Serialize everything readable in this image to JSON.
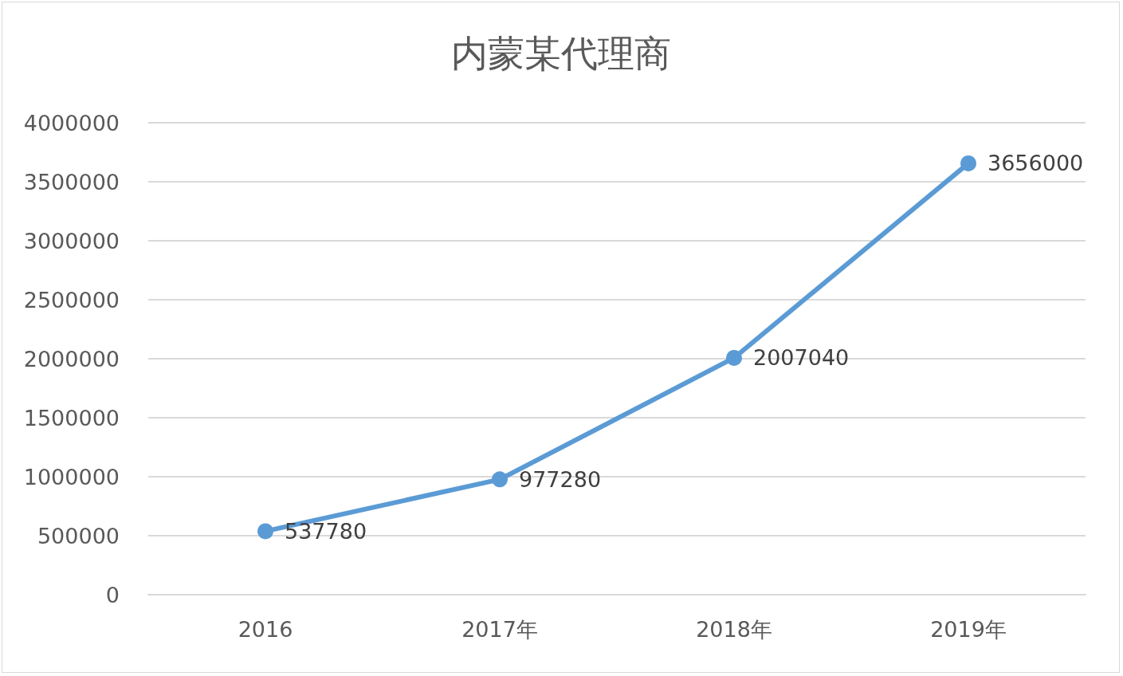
{
  "chart_data": {
    "type": "line",
    "title": "内蒙某代理商",
    "categories": [
      "2016",
      "2017年",
      "2018年",
      "2019年"
    ],
    "series": [
      {
        "color": "#5b9bd5",
        "values": [
          537780,
          977280,
          2007040,
          3656000
        ]
      }
    ],
    "ylim": [
      0,
      4000000
    ],
    "yticks": [
      0,
      500000,
      1000000,
      1500000,
      2000000,
      2500000,
      3000000,
      3500000,
      4000000
    ],
    "grid": "y",
    "marker": "circle",
    "line_style": "solid",
    "data_labels": true
  }
}
